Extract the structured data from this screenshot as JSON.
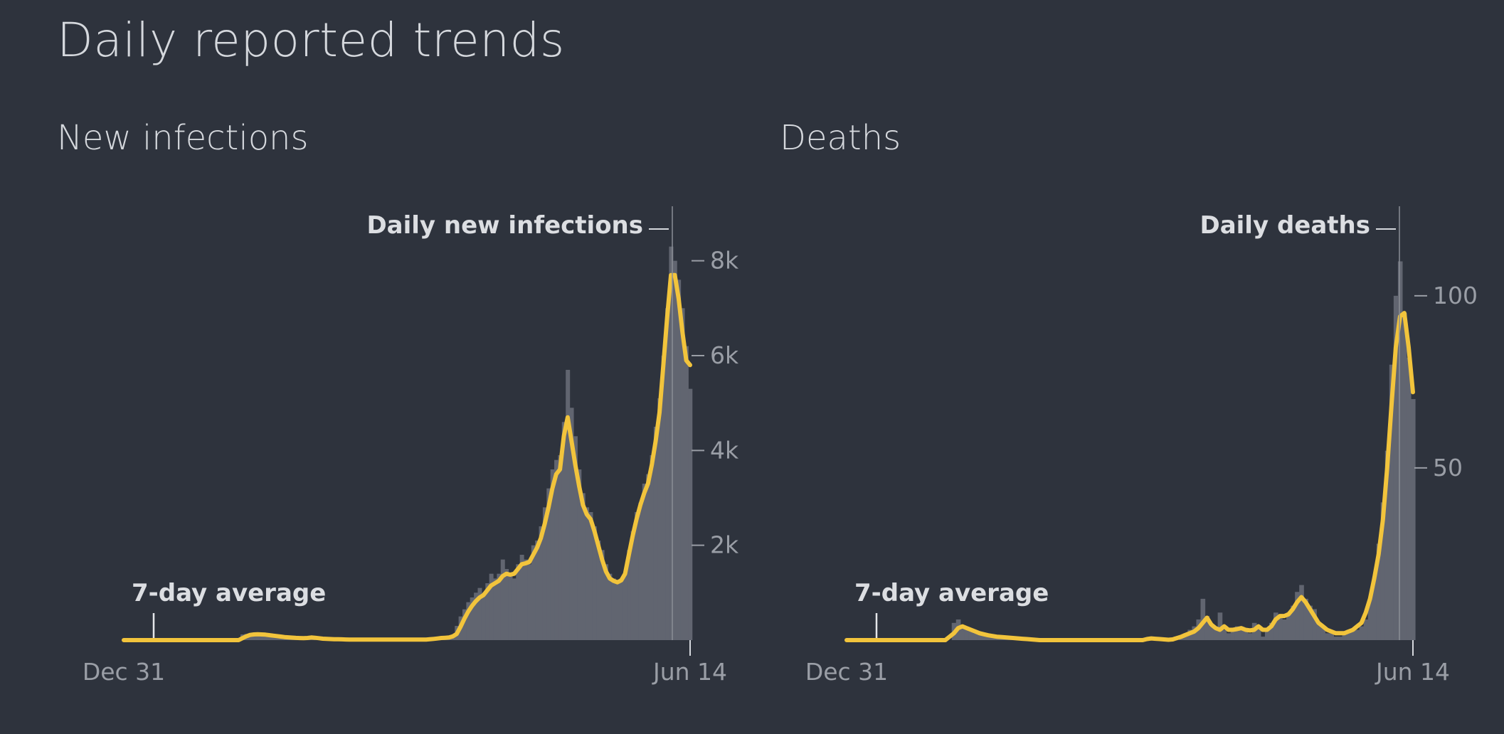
{
  "page": {
    "title": "Daily reported trends"
  },
  "colors": {
    "background": "#2e333d",
    "bars": "#616570",
    "average_line": "#f2c43c",
    "text": "#dcdee2",
    "ticks": "#9a9ea6"
  },
  "chart_data": [
    {
      "type": "bar",
      "title": "New infections",
      "xlabel": "",
      "ylabel": "",
      "x_tick_labels": [
        "Dec 31",
        "Jun 14"
      ],
      "y_ticks": [
        2000,
        4000,
        6000,
        8000
      ],
      "y_tick_labels": [
        "2k",
        "4k",
        "6k",
        "8k"
      ],
      "ylim": [
        0,
        9000
      ],
      "grid": false,
      "series": [
        {
          "name": "Daily new infections",
          "kind": "bar",
          "values": [
            0,
            0,
            0,
            0,
            0,
            0,
            0,
            0,
            0,
            0,
            0,
            0,
            0,
            0,
            0,
            0,
            0,
            0,
            0,
            0,
            0,
            0,
            0,
            0,
            0,
            0,
            0,
            0,
            0,
            0,
            0,
            120,
            130,
            100,
            150,
            140,
            120,
            110,
            90,
            80,
            70,
            60,
            55,
            50,
            45,
            40,
            40,
            35,
            40,
            90,
            60,
            30,
            30,
            20,
            20,
            20,
            15,
            15,
            10,
            10,
            10,
            10,
            10,
            10,
            10,
            10,
            10,
            10,
            10,
            10,
            10,
            10,
            10,
            10,
            10,
            10,
            10,
            10,
            10,
            20,
            30,
            40,
            60,
            50,
            40,
            60,
            120,
            300,
            500,
            650,
            800,
            900,
            1000,
            1100,
            1000,
            1200,
            1400,
            1300,
            1400,
            1700,
            1500,
            1400,
            1300,
            1600,
            1800,
            1700,
            1600,
            2000,
            2100,
            2400,
            2800,
            3200,
            3600,
            3800,
            3900,
            4600,
            5700,
            4900,
            4300,
            3600,
            3100,
            2800,
            2700,
            2400,
            2100,
            1900,
            1600,
            1400,
            1300,
            1250,
            1300,
            1400,
            1900,
            2300,
            2700,
            2900,
            3300,
            3500,
            3900,
            4500,
            5100,
            6000,
            7000,
            8300,
            8000,
            7600,
            7000,
            6200,
            5300
          ]
        },
        {
          "name": "7-day average",
          "kind": "line",
          "values": [
            0,
            0,
            0,
            0,
            0,
            0,
            0,
            0,
            0,
            0,
            0,
            0,
            0,
            0,
            0,
            0,
            0,
            0,
            0,
            0,
            0,
            0,
            0,
            0,
            0,
            0,
            0,
            0,
            0,
            0,
            0,
            40,
            80,
            110,
            120,
            125,
            120,
            115,
            105,
            95,
            85,
            75,
            65,
            58,
            52,
            47,
            44,
            42,
            45,
            55,
            50,
            40,
            30,
            25,
            22,
            20,
            18,
            16,
            14,
            12,
            11,
            10,
            10,
            10,
            10,
            10,
            10,
            10,
            10,
            10,
            10,
            10,
            10,
            10,
            10,
            10,
            10,
            10,
            10,
            12,
            18,
            25,
            35,
            45,
            50,
            55,
            80,
            130,
            280,
            450,
            600,
            720,
            820,
            900,
            950,
            1050,
            1150,
            1200,
            1250,
            1350,
            1400,
            1380,
            1400,
            1500,
            1600,
            1620,
            1650,
            1800,
            1950,
            2150,
            2450,
            2800,
            3200,
            3500,
            3600,
            4300,
            4700,
            4200,
            3700,
            3250,
            2850,
            2650,
            2550,
            2300,
            2000,
            1700,
            1450,
            1300,
            1250,
            1220,
            1260,
            1400,
            1800,
            2200,
            2550,
            2850,
            3100,
            3300,
            3700,
            4200,
            4800,
            5800,
            6800,
            7700,
            7700,
            7200,
            6500,
            5900,
            5800
          ]
        }
      ]
    },
    {
      "type": "bar",
      "title": "Deaths",
      "xlabel": "",
      "ylabel": "",
      "x_tick_labels": [
        "Dec 31",
        "Jun 14"
      ],
      "y_ticks": [
        50,
        100
      ],
      "y_tick_labels": [
        "50",
        "100"
      ],
      "ylim": [
        0,
        126
      ],
      "grid": false,
      "series": [
        {
          "name": "Daily deaths",
          "kind": "bar",
          "values": [
            0,
            0,
            0,
            0,
            0,
            0,
            0,
            0,
            0,
            0,
            0,
            0,
            0,
            0,
            0,
            0,
            0,
            0,
            0,
            0,
            0,
            0,
            0,
            0,
            0,
            5,
            6,
            4,
            3,
            3,
            2,
            2,
            2,
            1,
            1,
            1,
            1,
            1,
            1,
            1,
            0,
            0,
            0,
            0,
            0,
            0,
            0,
            0,
            0,
            0,
            0,
            0,
            0,
            0,
            0,
            0,
            0,
            0,
            0,
            0,
            0,
            0,
            0,
            0,
            0,
            0,
            0,
            0,
            0,
            0,
            0,
            1,
            0,
            0,
            0,
            0,
            0,
            0,
            1,
            2,
            3,
            4,
            6,
            12,
            7,
            4,
            3,
            8,
            3,
            2,
            3,
            4,
            3,
            3,
            2,
            5,
            4,
            1,
            3,
            5,
            8,
            7,
            6,
            8,
            10,
            14,
            16,
            12,
            10,
            9,
            5,
            4,
            2,
            2,
            1,
            1,
            2,
            3,
            3,
            3,
            4,
            6,
            12,
            18,
            28,
            40,
            55,
            80,
            100,
            110,
            95,
            82,
            70
          ]
        },
        {
          "name": "7-day average",
          "kind": "line",
          "values": [
            0,
            0,
            0,
            0,
            0,
            0,
            0,
            0,
            0,
            0,
            0,
            0,
            0,
            0,
            0,
            0,
            0,
            0,
            0,
            0,
            0,
            0,
            0,
            0,
            1,
            2,
            3.5,
            4,
            3.5,
            3,
            2.5,
            2,
            1.7,
            1.4,
            1.2,
            1,
            0.9,
            0.8,
            0.7,
            0.6,
            0.5,
            0.4,
            0.3,
            0.2,
            0.1,
            0,
            0,
            0,
            0,
            0,
            0,
            0,
            0,
            0,
            0,
            0,
            0,
            0,
            0,
            0,
            0,
            0,
            0,
            0,
            0,
            0,
            0,
            0,
            0,
            0,
            0.3,
            0.5,
            0.4,
            0.3,
            0.2,
            0.1,
            0.2,
            0.6,
            1,
            1.5,
            2,
            2.5,
            3.5,
            5,
            6.5,
            4.5,
            3.5,
            3,
            4,
            3,
            3,
            3.2,
            3.5,
            3,
            2.8,
            3,
            4,
            3,
            3,
            4,
            6,
            7,
            7,
            7.5,
            9,
            11,
            12.5,
            11,
            9,
            7,
            5,
            4,
            3,
            2.5,
            2,
            2,
            2,
            2.5,
            3,
            4,
            5,
            8,
            12,
            18,
            25,
            35,
            50,
            68,
            85,
            94,
            95,
            85,
            72
          ]
        }
      ]
    }
  ],
  "charts": [
    {
      "title": "New infections",
      "bar_label": "Daily new infections",
      "avg_label": "7-day average",
      "x_start": "Dec 31",
      "x_end": "Jun 14"
    },
    {
      "title": "Deaths",
      "bar_label": "Daily deaths",
      "avg_label": "7-day average",
      "x_start": "Dec 31",
      "x_end": "Jun 14"
    }
  ]
}
